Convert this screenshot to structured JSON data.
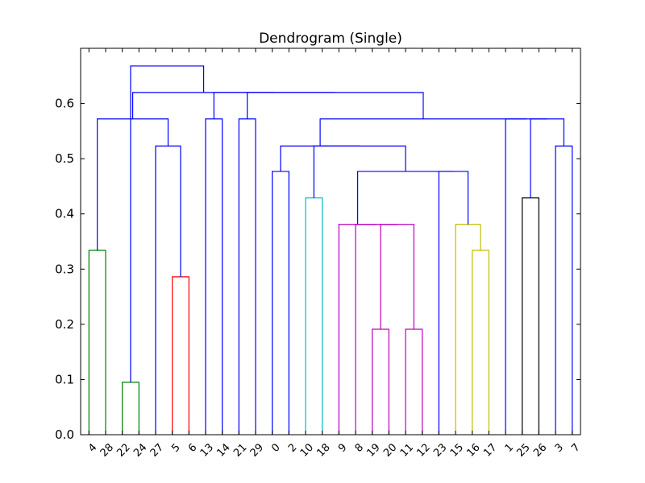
{
  "chart_data": {
    "type": "dendrogram",
    "title": "Dendrogram (Single)",
    "xlabel": "",
    "ylabel": "",
    "ylim": [
      0,
      0.7
    ],
    "yticks": [
      0.0,
      0.1,
      0.2,
      0.3,
      0.4,
      0.5,
      0.6
    ],
    "ytick_labels": [
      "0.0",
      "0.1",
      "0.2",
      "0.3",
      "0.4",
      "0.5",
      "0.6"
    ],
    "leaves": [
      "4",
      "28",
      "22",
      "24",
      "27",
      "5",
      "6",
      "13",
      "14",
      "21",
      "29",
      "0",
      "2",
      "10",
      "18",
      "9",
      "8",
      "19",
      "20",
      "11",
      "12",
      "23",
      "15",
      "16",
      "17",
      "1",
      "25",
      "26",
      "3",
      "7"
    ],
    "colors": {
      "above": "#0000ff",
      "green": "#008000",
      "red": "#ff0000",
      "cyan": "#00bfbf",
      "magenta": "#bf00bf",
      "yellow": "#bfbf00",
      "black": "#000000"
    },
    "links": [
      {
        "left": "L1",
        "right": "L0",
        "height": 0.334,
        "color": "green",
        "alias": "L1"
      },
      {
        "left": "L2",
        "right": "L3",
        "height": 0.095,
        "color": "green",
        "alias": "L0"
      },
      {
        "left": "L5",
        "right": "L6",
        "height": 0.286,
        "color": "red",
        "alias": "R0"
      },
      {
        "left": "L4",
        "right": "R0",
        "height": 0.523,
        "color": "above",
        "alias": "B1"
      },
      {
        "left": "L1",
        "right": "B1",
        "height": 0.572,
        "color": "above",
        "alias": "B2"
      },
      {
        "left": "L7",
        "right": "L8",
        "height": 0.572,
        "color": "above",
        "alias": "B3"
      },
      {
        "left": "L9",
        "right": "L10",
        "height": 0.572,
        "color": "above",
        "alias": "B4"
      },
      {
        "left": "L11",
        "right": "L12",
        "height": 0.477,
        "color": "above",
        "alias": "B5"
      },
      {
        "left": "L13",
        "right": "L14",
        "height": 0.429,
        "color": "cyan",
        "alias": "C0"
      },
      {
        "left": "L17",
        "right": "L18",
        "height": 0.191,
        "color": "magenta",
        "alias": "M1"
      },
      {
        "left": "L19",
        "right": "L20",
        "height": 0.191,
        "color": "magenta",
        "alias": "M2"
      },
      {
        "left": "M1",
        "right": "M2",
        "height": 0.381,
        "color": "magenta",
        "alias": "M3"
      },
      {
        "left": "L16",
        "right": "M3",
        "height": 0.381,
        "color": "magenta",
        "alias": "M4"
      },
      {
        "left": "L15",
        "right": "M4",
        "height": 0.381,
        "color": "magenta",
        "alias": "M5"
      },
      {
        "left": "L23",
        "right": "L24",
        "height": 0.334,
        "color": "yellow",
        "alias": "Y0"
      },
      {
        "left": "L22",
        "right": "Y0",
        "height": 0.381,
        "color": "yellow",
        "alias": "Y1"
      },
      {
        "left": "L21",
        "right": "Y1",
        "height": 0.477,
        "color": "above",
        "alias": "B6"
      },
      {
        "left": "M5",
        "right": "B6",
        "height": 0.477,
        "color": "above",
        "alias": "B7"
      },
      {
        "left": "C0",
        "right": "B7",
        "height": 0.523,
        "color": "above",
        "alias": "B8"
      },
      {
        "left": "B5",
        "right": "B8",
        "height": 0.523,
        "color": "above",
        "alias": "B9"
      },
      {
        "left": "L26",
        "right": "L27",
        "height": 0.429,
        "color": "black",
        "alias": "K0"
      },
      {
        "left": "L28",
        "right": "L29",
        "height": 0.523,
        "color": "above",
        "alias": "B10"
      },
      {
        "left": "K0",
        "right": "B10",
        "height": 0.572,
        "color": "above",
        "alias": "B11"
      },
      {
        "left": "L25",
        "right": "B11",
        "height": 0.572,
        "color": "above",
        "alias": "B12"
      },
      {
        "left": "B9",
        "right": "B12",
        "height": 0.572,
        "color": "above",
        "alias": "B13"
      },
      {
        "left": "B4",
        "right": "B13",
        "height": 0.62,
        "color": "above",
        "alias": "B14"
      },
      {
        "left": "B3",
        "right": "B14",
        "height": 0.62,
        "color": "above",
        "alias": "B15"
      },
      {
        "left": "B2",
        "right": "B15",
        "height": 0.62,
        "color": "above",
        "alias": "B16"
      },
      {
        "left": "L0",
        "right": "B16",
        "height": 0.668,
        "color": "above",
        "alias": "ROOT"
      }
    ]
  }
}
